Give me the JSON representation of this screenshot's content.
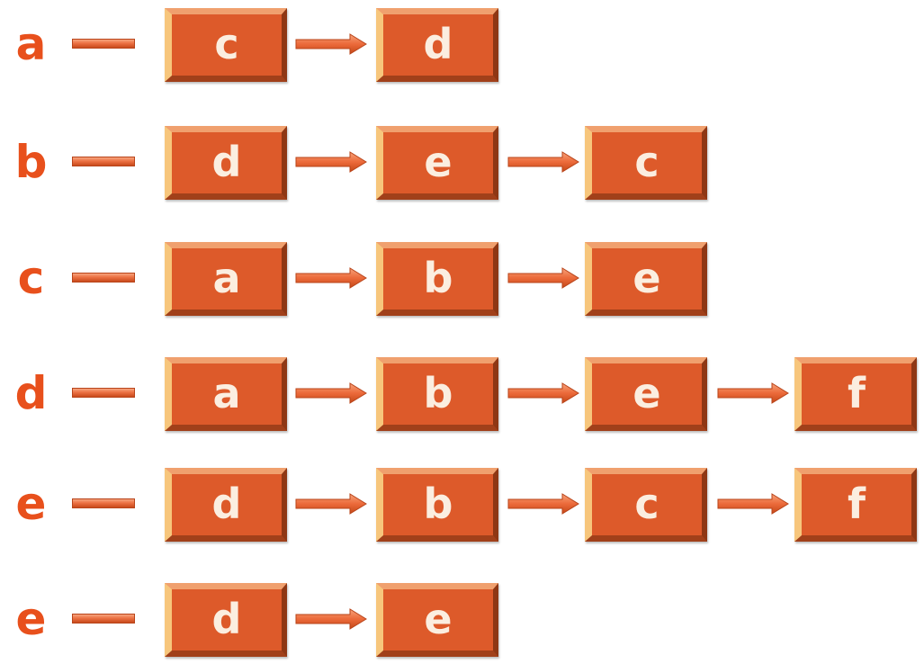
{
  "rows": [
    {
      "label": "a",
      "nodes": [
        "c",
        "d"
      ]
    },
    {
      "label": "b",
      "nodes": [
        "d",
        "e",
        "c"
      ]
    },
    {
      "label": "c",
      "nodes": [
        "a",
        "b",
        "e"
      ]
    },
    {
      "label": "d",
      "nodes": [
        "a",
        "b",
        "e",
        "f"
      ]
    },
    {
      "label": "e",
      "nodes": [
        "d",
        "b",
        "c",
        "f"
      ]
    },
    {
      "label": "e",
      "nodes": [
        "d",
        "e"
      ]
    }
  ],
  "colors": {
    "label_text": "#e8501c",
    "node_fill": "#dd5a2a",
    "node_text": "#fbeee0",
    "arrow": "#ec6a3a"
  }
}
